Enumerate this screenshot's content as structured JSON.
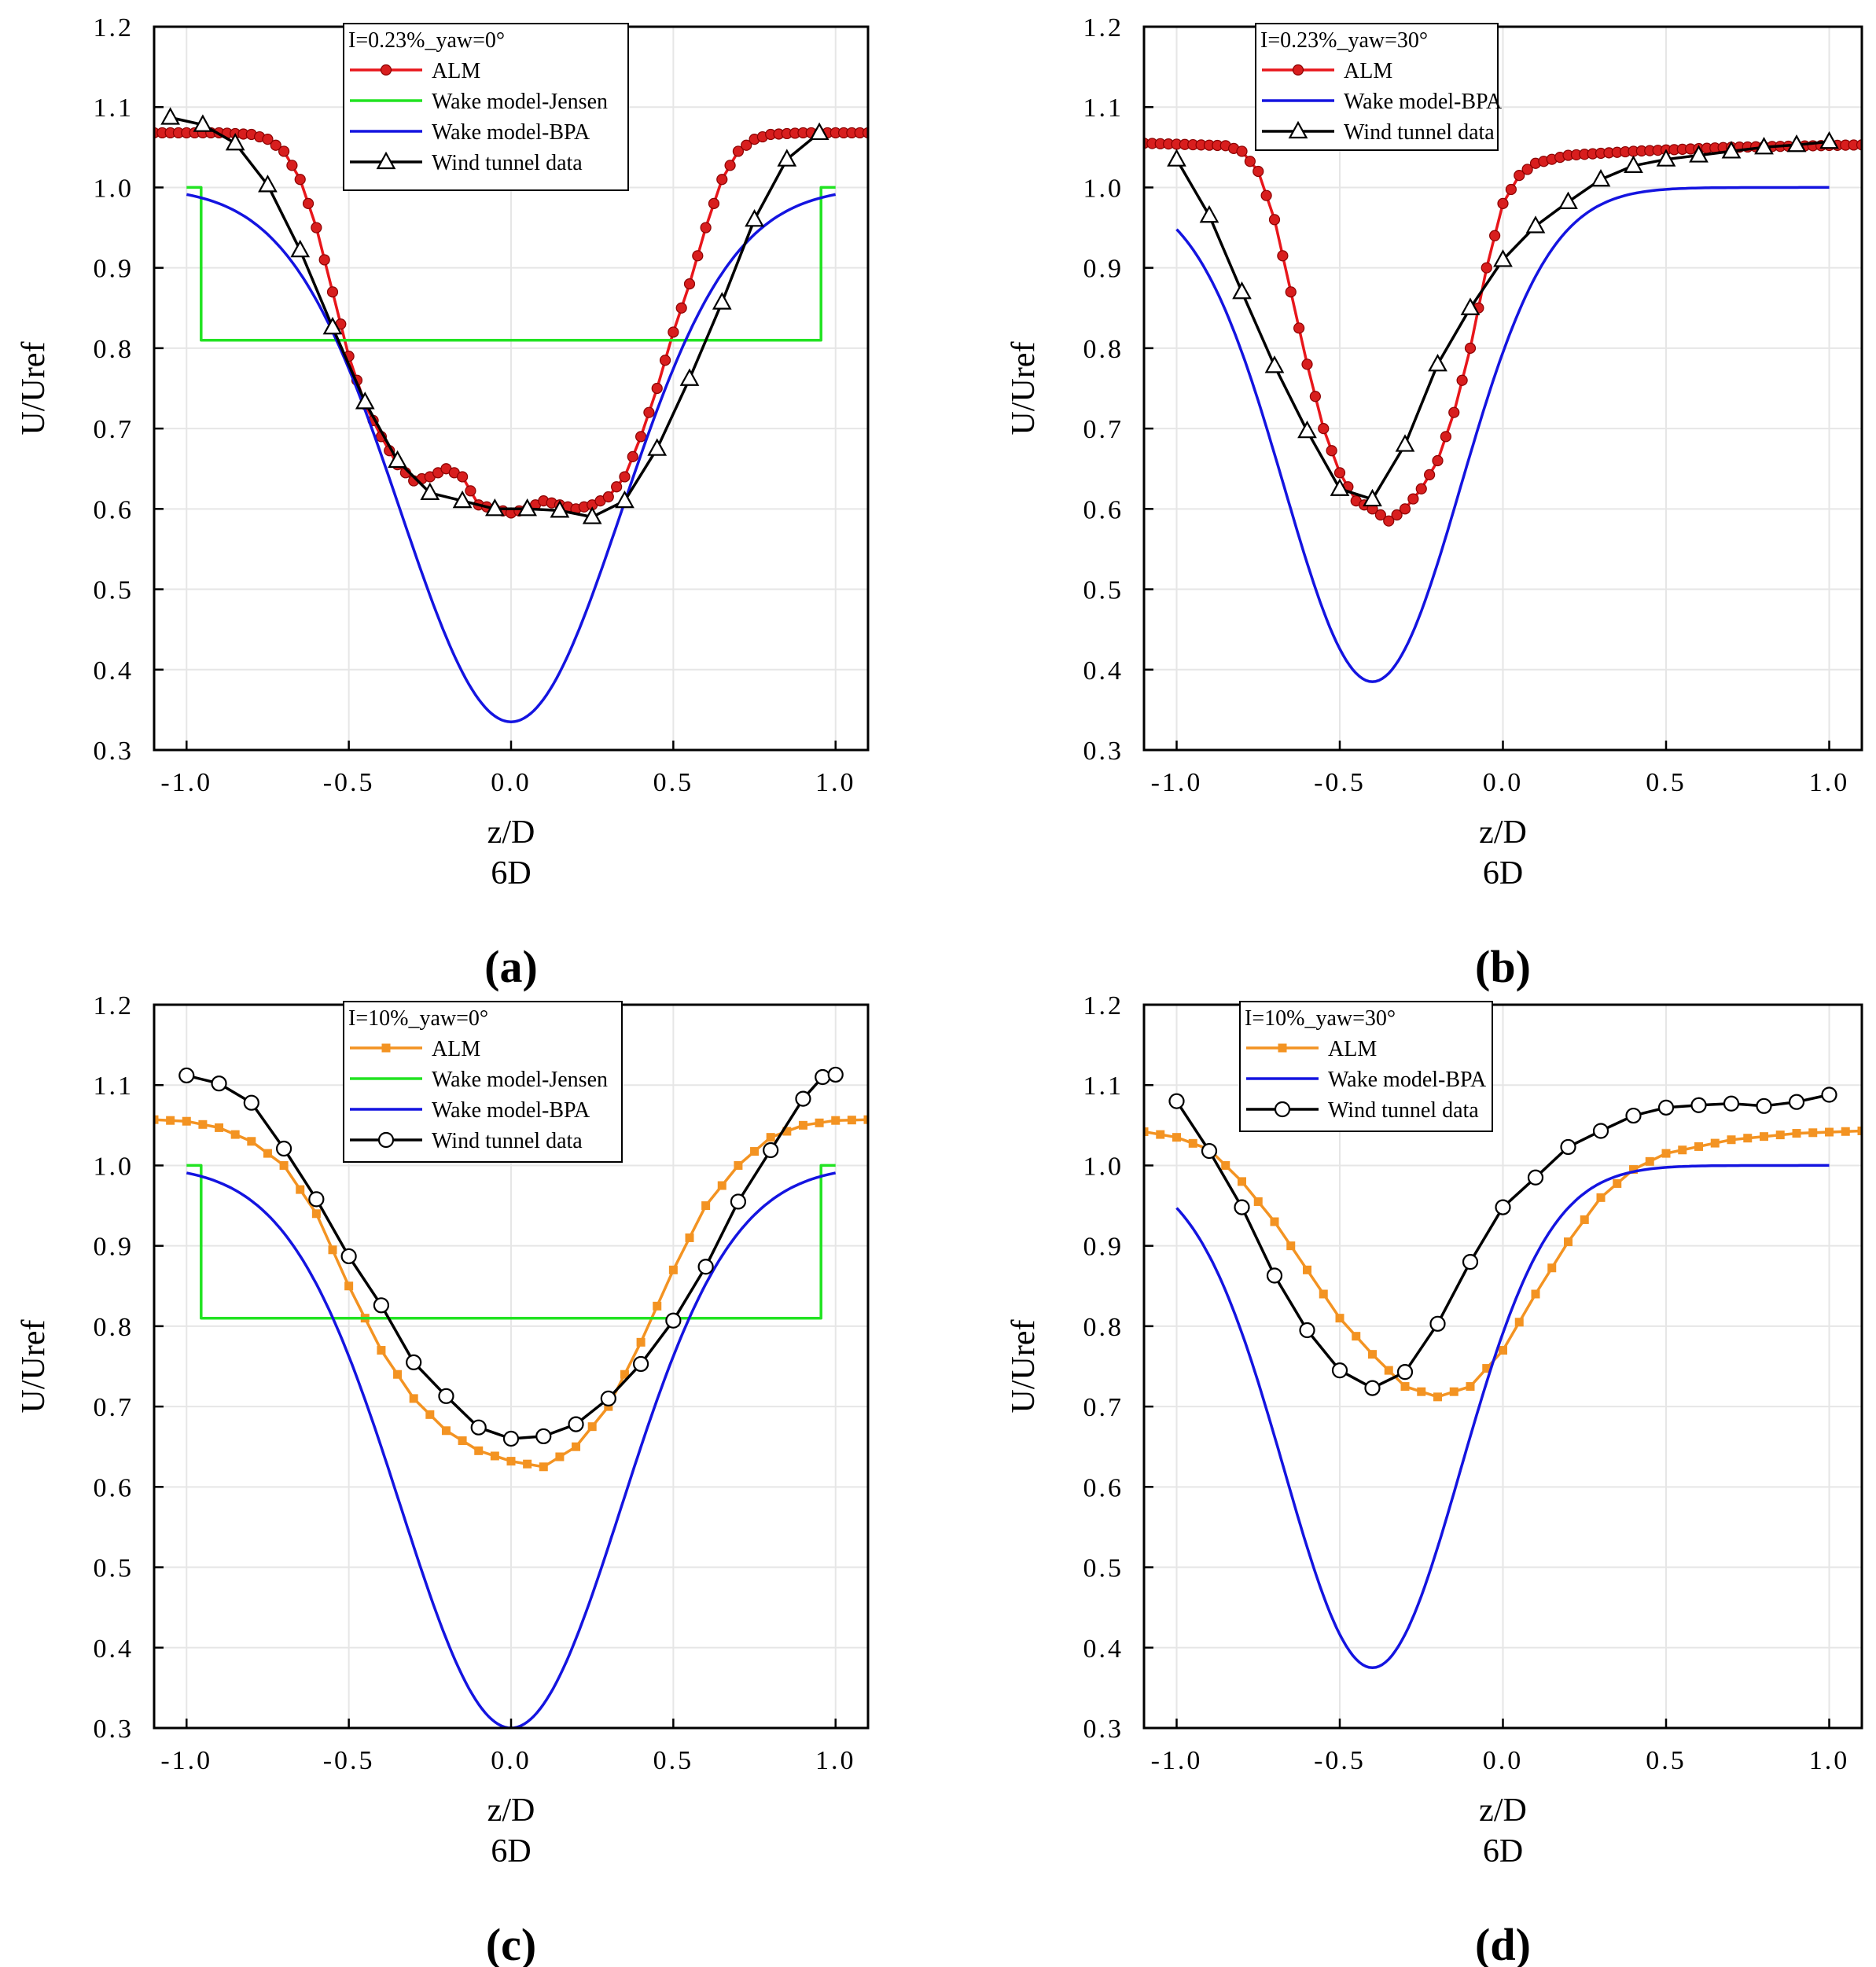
{
  "colors": {
    "alm_red": "#e8161b",
    "alm_red_marker": "#d81e1e",
    "alm_orange": "#f39322",
    "jensen_green": "#22e322",
    "bpa_blue": "#1414e0",
    "wind_black": "#000000",
    "grid": "#e6e6e6"
  },
  "chart_data": [
    {
      "panel": "a",
      "panel_label": "(a)",
      "type": "line",
      "legend_title": "I=0.23%_yaw=0°",
      "xlabel": "z/D",
      "xlabel2": "6D",
      "ylabel": "U/Uref",
      "xlim": [
        -1.1,
        1.1
      ],
      "ylim": [
        0.3,
        1.2
      ],
      "xticks": [
        -1.0,
        -0.5,
        0.0,
        0.5,
        1.0
      ],
      "xtick_labels": [
        "-1.0",
        "-0.5",
        "0.0",
        "0.5",
        "1.0"
      ],
      "yticks": [
        0.3,
        0.4,
        0.5,
        0.6,
        0.7,
        0.8,
        0.9,
        1.0,
        1.1,
        1.2
      ],
      "ytick_labels": [
        "0.3",
        "0.4",
        "0.5",
        "0.6",
        "0.7",
        "0.8",
        "0.9",
        "1.0",
        "1.1",
        "1.2"
      ],
      "grid": true,
      "series": [
        {
          "name": "ALM",
          "color": "#e8161b",
          "marker": "dot",
          "x": [
            -1.1,
            -0.9,
            -0.8,
            -0.75,
            -0.7,
            -0.65,
            -0.6,
            -0.55,
            -0.5,
            -0.45,
            -0.4,
            -0.35,
            -0.3,
            -0.25,
            -0.2,
            -0.15,
            -0.1,
            -0.05,
            0.0,
            0.05,
            0.1,
            0.15,
            0.2,
            0.25,
            0.3,
            0.35,
            0.4,
            0.45,
            0.5,
            0.55,
            0.6,
            0.65,
            0.7,
            0.75,
            0.8,
            0.9,
            1.1
          ],
          "y": [
            1.068,
            1.068,
            1.066,
            1.06,
            1.045,
            1.01,
            0.95,
            0.87,
            0.79,
            0.73,
            0.69,
            0.655,
            0.635,
            0.64,
            0.65,
            0.64,
            0.605,
            0.6,
            0.595,
            0.6,
            0.61,
            0.605,
            0.6,
            0.605,
            0.615,
            0.64,
            0.69,
            0.75,
            0.82,
            0.88,
            0.95,
            1.01,
            1.045,
            1.06,
            1.066,
            1.068,
            1.068
          ]
        },
        {
          "name": "Wake model-Jensen",
          "color": "#22e322",
          "marker": "none",
          "x": [
            -1.0,
            -0.955,
            -0.955,
            0.955,
            0.955,
            1.0
          ],
          "y": [
            1.0,
            1.0,
            0.81,
            0.81,
            1.0,
            1.0
          ]
        },
        {
          "name": "Wake model-BPA",
          "color": "#1414e0",
          "marker": "none",
          "gaussian": {
            "base": 1.0,
            "depth": 0.665,
            "center": 0.0,
            "sigma": 0.34
          },
          "x_range": [
            -1.0,
            1.0
          ]
        },
        {
          "name": "Wind tunnel data",
          "color": "#000000",
          "marker": "triangle",
          "x": [
            -1.05,
            -0.95,
            -0.85,
            -0.75,
            -0.65,
            -0.55,
            -0.45,
            -0.35,
            -0.25,
            -0.15,
            -0.05,
            0.05,
            0.15,
            0.25,
            0.35,
            0.45,
            0.55,
            0.65,
            0.75,
            0.85,
            0.95
          ],
          "y": [
            1.087,
            1.078,
            1.055,
            1.003,
            0.922,
            0.826,
            0.733,
            0.66,
            0.62,
            0.61,
            0.6,
            0.6,
            0.598,
            0.59,
            0.61,
            0.675,
            0.762,
            0.857,
            0.96,
            1.035,
            1.068
          ]
        }
      ]
    },
    {
      "panel": "b",
      "panel_label": "(b)",
      "type": "line",
      "legend_title": "I=0.23%_yaw=30°",
      "xlabel": "z/D",
      "xlabel2": "6D",
      "ylabel": "U/Uref",
      "xlim": [
        -1.1,
        1.1
      ],
      "ylim": [
        0.3,
        1.2
      ],
      "xticks": [
        -1.0,
        -0.5,
        0.0,
        0.5,
        1.0
      ],
      "xtick_labels": [
        "-1.0",
        "-0.5",
        "0.0",
        "0.5",
        "1.0"
      ],
      "yticks": [
        0.3,
        0.4,
        0.5,
        0.6,
        0.7,
        0.8,
        0.9,
        1.0,
        1.1,
        1.2
      ],
      "ytick_labels": [
        "0.3",
        "0.4",
        "0.5",
        "0.6",
        "0.7",
        "0.8",
        "0.9",
        "1.0",
        "1.1",
        "1.2"
      ],
      "grid": true,
      "series": [
        {
          "name": "ALM",
          "color": "#e8161b",
          "marker": "dot",
          "x": [
            -1.1,
            -0.85,
            -0.8,
            -0.75,
            -0.7,
            -0.65,
            -0.6,
            -0.55,
            -0.5,
            -0.45,
            -0.4,
            -0.35,
            -0.3,
            -0.25,
            -0.2,
            -0.15,
            -0.1,
            -0.05,
            0.0,
            0.05,
            0.1,
            0.2,
            0.4,
            0.7,
            1.1
          ],
          "y": [
            1.055,
            1.052,
            1.045,
            1.02,
            0.96,
            0.87,
            0.78,
            0.7,
            0.645,
            0.61,
            0.6,
            0.585,
            0.6,
            0.625,
            0.66,
            0.72,
            0.8,
            0.9,
            0.98,
            1.015,
            1.03,
            1.04,
            1.045,
            1.05,
            1.053
          ]
        },
        {
          "name": "Wake model-BPA",
          "color": "#1414e0",
          "marker": "none",
          "gaussian": {
            "base": 1.0,
            "depth": 0.615,
            "center": -0.4,
            "sigma": 0.27
          },
          "x_range": [
            -1.0,
            1.0
          ]
        },
        {
          "name": "Wind tunnel data",
          "color": "#000000",
          "marker": "triangle",
          "x": [
            -1.0,
            -0.9,
            -0.8,
            -0.7,
            -0.6,
            -0.5,
            -0.4,
            -0.3,
            -0.2,
            -0.1,
            0.0,
            0.1,
            0.2,
            0.3,
            0.4,
            0.5,
            0.6,
            0.7,
            0.8,
            0.9,
            1.0
          ],
          "y": [
            1.035,
            0.965,
            0.87,
            0.778,
            0.697,
            0.625,
            0.612,
            0.68,
            0.78,
            0.85,
            0.91,
            0.952,
            0.982,
            1.01,
            1.027,
            1.035,
            1.04,
            1.045,
            1.05,
            1.053,
            1.057
          ]
        }
      ]
    },
    {
      "panel": "c",
      "panel_label": "(c)",
      "type": "line",
      "legend_title": "I=10%_yaw=0°",
      "xlabel": "z/D",
      "xlabel2": "6D",
      "ylabel": "U/Uref",
      "xlim": [
        -1.1,
        1.1
      ],
      "ylim": [
        0.3,
        1.2
      ],
      "xticks": [
        -1.0,
        -0.5,
        0.0,
        0.5,
        1.0
      ],
      "xtick_labels": [
        "-1.0",
        "-0.5",
        "0.0",
        "0.5",
        "1.0"
      ],
      "yticks": [
        0.3,
        0.4,
        0.5,
        0.6,
        0.7,
        0.8,
        0.9,
        1.0,
        1.1,
        1.2
      ],
      "ytick_labels": [
        "0.3",
        "0.4",
        "0.5",
        "0.6",
        "0.7",
        "0.8",
        "0.9",
        "1.0",
        "1.1",
        "1.2"
      ],
      "grid": true,
      "series": [
        {
          "name": "ALM",
          "color": "#f39322",
          "marker": "square",
          "x": [
            -1.1,
            -1.0,
            -0.9,
            -0.8,
            -0.7,
            -0.6,
            -0.5,
            -0.4,
            -0.3,
            -0.2,
            -0.1,
            0.0,
            0.1,
            0.2,
            0.3,
            0.4,
            0.5,
            0.6,
            0.7,
            0.8,
            0.9,
            1.0,
            1.1
          ],
          "y": [
            1.057,
            1.055,
            1.047,
            1.03,
            1.0,
            0.94,
            0.85,
            0.77,
            0.71,
            0.67,
            0.645,
            0.632,
            0.625,
            0.65,
            0.7,
            0.78,
            0.87,
            0.95,
            1.0,
            1.035,
            1.05,
            1.056,
            1.057
          ]
        },
        {
          "name": "Wake model-Jensen",
          "color": "#22e322",
          "marker": "none",
          "x": [
            -1.0,
            -0.955,
            -0.955,
            0.955,
            0.955,
            1.0
          ],
          "y": [
            1.0,
            1.0,
            0.81,
            0.81,
            1.0,
            1.0
          ]
        },
        {
          "name": "Wake model-BPA",
          "color": "#1414e0",
          "marker": "none",
          "gaussian": {
            "base": 1.0,
            "depth": 0.7,
            "center": 0.0,
            "sigma": 0.34
          },
          "x_range": [
            -1.0,
            1.0
          ]
        },
        {
          "name": "Wind tunnel data",
          "color": "#000000",
          "marker": "circle",
          "x": [
            -1.0,
            -0.9,
            -0.8,
            -0.7,
            -0.6,
            -0.5,
            -0.4,
            -0.3,
            -0.2,
            -0.1,
            0.0,
            0.1,
            0.2,
            0.3,
            0.4,
            0.5,
            0.6,
            0.7,
            0.8,
            0.9,
            0.96,
            1.0
          ],
          "y": [
            1.112,
            1.102,
            1.078,
            1.021,
            0.958,
            0.887,
            0.826,
            0.755,
            0.713,
            0.674,
            0.66,
            0.663,
            0.678,
            0.71,
            0.753,
            0.807,
            0.874,
            0.955,
            1.019,
            1.083,
            1.11,
            1.113
          ]
        }
      ]
    },
    {
      "panel": "d",
      "panel_label": "(d)",
      "type": "line",
      "legend_title": "I=10%_yaw=30°",
      "xlabel": "z/D",
      "xlabel2": "6D",
      "ylabel": "U/Uref",
      "xlim": [
        -1.1,
        1.1
      ],
      "ylim": [
        0.3,
        1.2
      ],
      "xticks": [
        -1.0,
        -0.5,
        0.0,
        0.5,
        1.0
      ],
      "xtick_labels": [
        "-1.0",
        "-0.5",
        "0.0",
        "0.5",
        "1.0"
      ],
      "yticks": [
        0.3,
        0.4,
        0.5,
        0.6,
        0.7,
        0.8,
        0.9,
        1.0,
        1.1,
        1.2
      ],
      "ytick_labels": [
        "0.3",
        "0.4",
        "0.5",
        "0.6",
        "0.7",
        "0.8",
        "0.9",
        "1.0",
        "1.1",
        "1.2"
      ],
      "grid": true,
      "series": [
        {
          "name": "ALM",
          "color": "#f39322",
          "marker": "square",
          "x": [
            -1.1,
            -1.0,
            -0.9,
            -0.8,
            -0.7,
            -0.6,
            -0.5,
            -0.4,
            -0.3,
            -0.2,
            -0.1,
            0.0,
            0.1,
            0.2,
            0.3,
            0.4,
            0.5,
            0.7,
            0.9,
            1.1
          ],
          "y": [
            1.042,
            1.035,
            1.02,
            0.98,
            0.93,
            0.87,
            0.81,
            0.765,
            0.725,
            0.712,
            0.725,
            0.77,
            0.84,
            0.905,
            0.96,
            0.995,
            1.015,
            1.032,
            1.04,
            1.043
          ]
        },
        {
          "name": "Wake model-BPA",
          "color": "#1414e0",
          "marker": "none",
          "gaussian": {
            "base": 1.0,
            "depth": 0.625,
            "center": -0.4,
            "sigma": 0.27
          },
          "x_range": [
            -1.0,
            1.0
          ]
        },
        {
          "name": "Wind tunnel data",
          "color": "#000000",
          "marker": "circle",
          "x": [
            -1.0,
            -0.9,
            -0.8,
            -0.7,
            -0.6,
            -0.5,
            -0.4,
            -0.3,
            -0.2,
            -0.1,
            0.0,
            0.1,
            0.2,
            0.3,
            0.4,
            0.5,
            0.6,
            0.7,
            0.8,
            0.9,
            1.0
          ],
          "y": [
            1.08,
            1.018,
            0.948,
            0.863,
            0.795,
            0.745,
            0.723,
            0.743,
            0.803,
            0.88,
            0.948,
            0.985,
            1.023,
            1.043,
            1.062,
            1.072,
            1.075,
            1.077,
            1.074,
            1.079,
            1.088
          ]
        }
      ]
    }
  ]
}
